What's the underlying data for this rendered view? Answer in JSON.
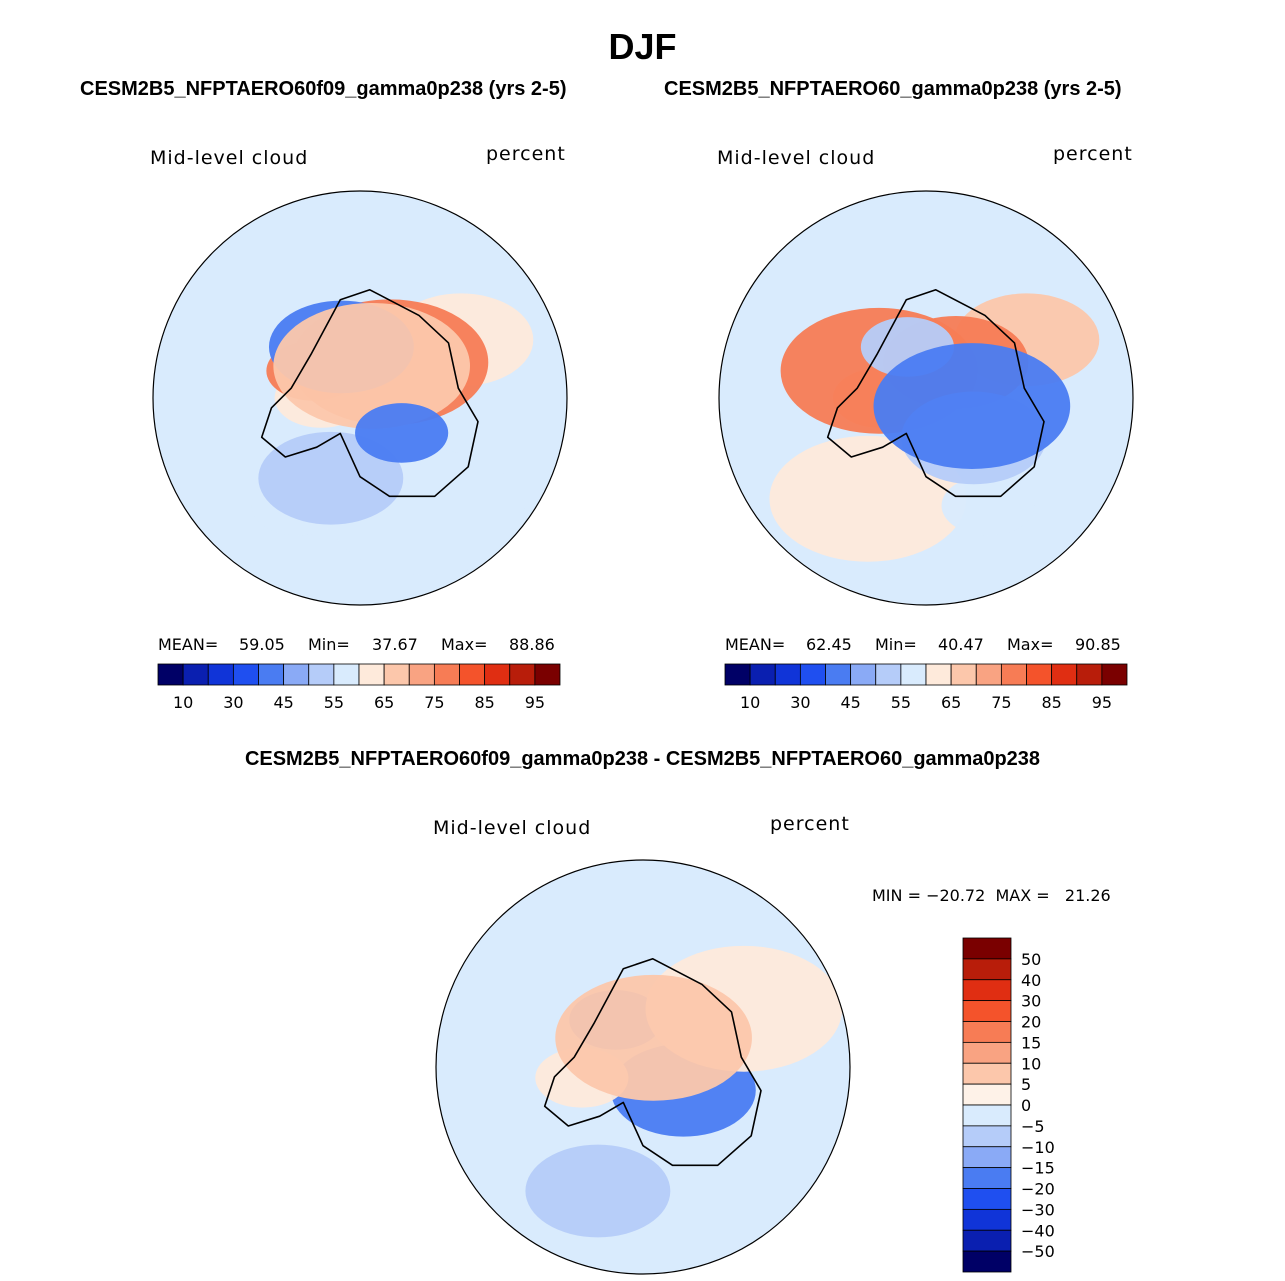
{
  "page": {
    "title": "DJF",
    "panel_left_title": "CESM2B5_NFPTAERO60f09_gamma0p238 (yrs 2-5)",
    "panel_right_title": "CESM2B5_NFPTAERO60_gamma0p238 (yrs 2-5)",
    "panel_diff_title": "CESM2B5_NFPTAERO60f09_gamma0p238 - CESM2B5_NFPTAERO60_gamma0p238"
  },
  "chart_data": [
    {
      "type": "heatmap",
      "projection": "south-polar-stereographic",
      "panel": "left",
      "title": "CESM2B5_NFPTAERO60f09_gamma0p238 (yrs 2-5)",
      "variable": "Mid-level cloud",
      "units": "percent",
      "stats": {
        "mean_label": "MEAN=",
        "mean": "59.05",
        "min_label": "Min=",
        "min": "37.67",
        "max_label": "Max=",
        "max": "88.86"
      },
      "colorbar": {
        "orientation": "horizontal",
        "colors": [
          "#000066",
          "#0a1fb0",
          "#1034d8",
          "#1f4ff0",
          "#4a7cf2",
          "#8aaaf6",
          "#b5ccf9",
          "#d9ebfd",
          "#feeadb",
          "#fcc7ab",
          "#f9a382",
          "#f77c55",
          "#f4532b",
          "#e02e12",
          "#b81d0a",
          "#7a0000"
        ],
        "tick_labels": [
          "10",
          "30",
          "45",
          "55",
          "65",
          "75",
          "85",
          "95"
        ]
      },
      "blobs": [
        {
          "lon": -90,
          "r": 0.25,
          "level": "warm1"
        },
        {
          "lon": 60,
          "r": 0.75,
          "level": "warm1"
        },
        {
          "lon": 150,
          "r": 0.85,
          "level": "cool1"
        },
        {
          "lon": -150,
          "r": 0.8,
          "level": "cool1"
        },
        {
          "lon": -160,
          "r": 0.55,
          "level": "cool2"
        },
        {
          "lon": 40,
          "r": 0.3,
          "level": "warm3"
        },
        {
          "lon": -60,
          "r": 0.35,
          "level": "warm3"
        },
        {
          "lon": -20,
          "r": 0.35,
          "level": "cool3"
        },
        {
          "lon": 20,
          "r": 0.22,
          "level": "warm2"
        },
        {
          "lon": 130,
          "r": 0.35,
          "level": "cool3"
        }
      ]
    },
    {
      "type": "heatmap",
      "projection": "south-polar-stereographic",
      "panel": "right",
      "title": "CESM2B5_NFPTAERO60_gamma0p238 (yrs 2-5)",
      "variable": "Mid-level cloud",
      "units": "percent",
      "stats": {
        "mean_label": "MEAN=",
        "mean": "62.45",
        "min_label": "Min=",
        "min": "40.47",
        "max_label": "Max=",
        "max": "90.85"
      },
      "colorbar": {
        "orientation": "horizontal",
        "colors": [
          "#000066",
          "#0a1fb0",
          "#1034d8",
          "#1f4ff0",
          "#4a7cf2",
          "#8aaaf6",
          "#b5ccf9",
          "#d9ebfd",
          "#feeadb",
          "#fcc7ab",
          "#f9a382",
          "#f77c55",
          "#f4532b",
          "#e02e12",
          "#b81d0a",
          "#7a0000"
        ],
        "tick_labels": [
          "10",
          "30",
          "45",
          "55",
          "65",
          "75",
          "85",
          "95"
        ]
      },
      "blobs": [
        {
          "lon": -90,
          "r": 0.3,
          "level": "warm2"
        },
        {
          "lon": 60,
          "r": 0.75,
          "level": "warm2"
        },
        {
          "lon": -150,
          "r": 0.75,
          "level": "warm1"
        },
        {
          "lon": 150,
          "r": 0.8,
          "level": "cool1"
        },
        {
          "lon": 40,
          "r": 0.3,
          "level": "warm3"
        },
        {
          "lon": -60,
          "r": 0.35,
          "level": "warm3"
        },
        {
          "lon": -20,
          "r": 0.35,
          "level": "cool2"
        },
        {
          "lon": 130,
          "r": 0.4,
          "level": "cool2"
        },
        {
          "lon": 100,
          "r": 0.3,
          "level": "cool3"
        }
      ]
    },
    {
      "type": "heatmap",
      "projection": "south-polar-stereographic",
      "panel": "difference",
      "title": "CESM2B5_NFPTAERO60f09_gamma0p238 - CESM2B5_NFPTAERO60_gamma0p238",
      "variable": "Mid-level cloud",
      "units": "percent",
      "stats": {
        "text": "MIN = −20.72  MAX =   21.26",
        "min": "-20.72",
        "max": "21.26"
      },
      "colorbar": {
        "orientation": "vertical",
        "colors": [
          "#7a0000",
          "#b81d0a",
          "#e02e12",
          "#f4532b",
          "#f77c55",
          "#f9a382",
          "#fcc7ab",
          "#fef2e8",
          "#d9ebfd",
          "#b5ccf9",
          "#8aaaf6",
          "#4a7cf2",
          "#1f4ff0",
          "#1034d8",
          "#0a1fb0",
          "#000066"
        ],
        "tick_labels": [
          "50",
          "40",
          "30",
          "20",
          "15",
          "10",
          "5",
          "0",
          "−5",
          "−10",
          "−15",
          "−20",
          "−30",
          "−40",
          "−50"
        ]
      },
      "blobs": [
        {
          "lon": -30,
          "r": 0.35,
          "level": "cool3"
        },
        {
          "lon": 120,
          "r": 0.3,
          "level": "cool3"
        },
        {
          "lon": 60,
          "r": 0.75,
          "level": "warm1"
        },
        {
          "lon": -100,
          "r": 0.4,
          "level": "warm1"
        },
        {
          "lon": -160,
          "r": 0.85,
          "level": "cool2"
        },
        {
          "lon": 20,
          "r": 0.2,
          "level": "warm2"
        }
      ]
    }
  ]
}
